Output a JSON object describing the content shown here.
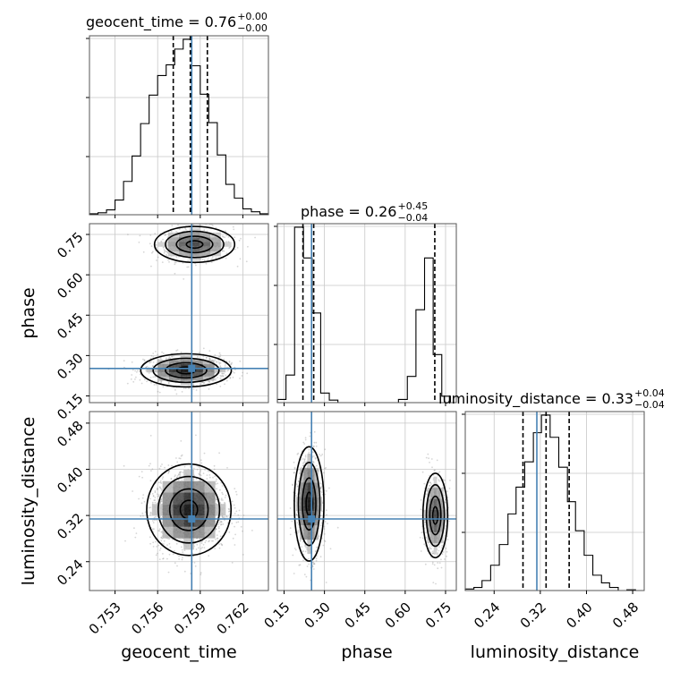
{
  "chart_data": {
    "type": "corner",
    "parameters": [
      "geocent_time",
      "phase",
      "luminosity_distance"
    ],
    "truth": {
      "geocent_time": 0.7584,
      "phase": 0.252,
      "luminosity_distance": 0.314
    },
    "titles": [
      {
        "name": "geocent_time",
        "text": "geocent_time = 0.76",
        "upper": "+0.00",
        "lower": "−0.00"
      },
      {
        "name": "phase",
        "text": "phase = 0.26",
        "upper": "+0.45",
        "lower": "−0.04"
      },
      {
        "name": "luminosity_distance",
        "text": "luminosity_distance = 0.33",
        "upper": "+0.04",
        "lower": "−0.04"
      }
    ],
    "axes": {
      "geocent_time": {
        "range": [
          0.7512,
          0.7638
        ],
        "ticks": [
          "0.753",
          "0.756",
          "0.759",
          "0.762"
        ],
        "tick_values": [
          0.753,
          0.756,
          0.759,
          0.762
        ]
      },
      "phase": {
        "range": [
          0.125,
          0.79
        ],
        "ticks": [
          "0.15",
          "0.30",
          "0.45",
          "0.60",
          "0.75"
        ],
        "tick_values": [
          0.15,
          0.3,
          0.45,
          0.6,
          0.75
        ]
      },
      "luminosity_distance": {
        "range": [
          0.19,
          0.5
        ],
        "ticks": [
          "0.24",
          "0.32",
          "0.40",
          "0.48"
        ],
        "tick_values": [
          0.24,
          0.32,
          0.4,
          0.48
        ]
      }
    },
    "histograms": {
      "geocent_time": {
        "bin_edges": [
          0.7512,
          0.7518,
          0.7524,
          0.753,
          0.7536,
          0.7542,
          0.7548,
          0.7554,
          0.756,
          0.7566,
          0.7572,
          0.7578,
          0.7584,
          0.759,
          0.7596,
          0.7602,
          0.7608,
          0.7614,
          0.762,
          0.7626,
          0.7632,
          0.7638
        ],
        "counts": [
          1,
          2,
          5,
          15,
          34,
          60,
          93,
          122,
          142,
          153,
          169,
          179,
          152,
          123,
          94,
          61,
          31,
          17,
          6,
          3,
          1
        ],
        "quantiles": [
          0.7571,
          0.7583,
          0.7595
        ]
      },
      "phase": {
        "bin_edges": [
          0.125,
          0.157,
          0.189,
          0.222,
          0.254,
          0.286,
          0.318,
          0.35,
          0.382,
          0.415,
          0.447,
          0.479,
          0.511,
          0.543,
          0.575,
          0.608,
          0.64,
          0.672,
          0.704,
          0.736,
          0.768,
          0.79
        ],
        "counts": [
          5,
          43,
          274,
          226,
          140,
          15,
          4,
          0,
          0,
          0,
          0,
          0,
          0,
          0,
          5,
          41,
          145,
          226,
          75,
          10,
          0
        ],
        "quantiles": [
          0.22,
          0.26,
          0.71
        ]
      },
      "luminosity_distance": {
        "bin_edges": [
          0.19,
          0.205,
          0.219,
          0.234,
          0.249,
          0.264,
          0.278,
          0.293,
          0.308,
          0.322,
          0.337,
          0.352,
          0.367,
          0.381,
          0.396,
          0.411,
          0.426,
          0.44,
          0.455,
          0.47,
          0.485,
          0.5
        ],
        "counts": [
          2,
          4,
          13,
          33,
          60,
          100,
          135,
          168,
          206,
          229,
          200,
          161,
          116,
          78,
          46,
          20,
          10,
          4,
          0,
          1,
          0
        ],
        "quantiles": [
          0.29,
          0.33,
          0.37
        ]
      }
    },
    "pairs": [
      {
        "x": "geocent_time",
        "y": "phase",
        "modes": [
          {
            "cx": 0.7586,
            "cy": 0.713,
            "sx": 0.00135,
            "sy": 0.032,
            "w": 0.4
          },
          {
            "cx": 0.758,
            "cy": 0.245,
            "sx": 0.00145,
            "sy": 0.028,
            "w": 0.6
          }
        ]
      },
      {
        "x": "geocent_time",
        "y": "luminosity_distance",
        "modes": [
          {
            "cx": 0.7582,
            "cy": 0.33,
            "sx": 0.00135,
            "sy": 0.036,
            "w": 1.0
          }
        ]
      },
      {
        "x": "phase",
        "y": "luminosity_distance",
        "modes": [
          {
            "cx": 0.243,
            "cy": 0.34,
            "sx": 0.025,
            "sy": 0.045,
            "w": 0.6
          },
          {
            "cx": 0.712,
            "cy": 0.32,
            "sx": 0.022,
            "sy": 0.035,
            "w": 0.4
          }
        ]
      }
    ],
    "grid": true
  }
}
